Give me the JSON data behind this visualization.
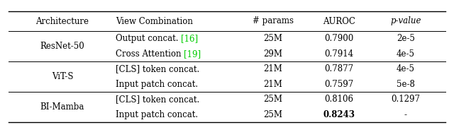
{
  "columns": [
    "Architecture",
    "View Combination",
    "# params",
    "AUROC",
    "p-value"
  ],
  "rows": [
    [
      "ResNet-50",
      "Output concat. [16]",
      "25M",
      "0.7900",
      "2e-5"
    ],
    [
      "",
      "Cross Attention [19]",
      "29M",
      "0.7914",
      "4e-5"
    ],
    [
      "ViT-S",
      "[CLS] token concat.",
      "21M",
      "0.7877",
      "4e-5"
    ],
    [
      "",
      "Input patch concat.",
      "21M",
      "0.7597",
      "5e-8"
    ],
    [
      "BI-Mamba",
      "[CLS] token concat.",
      "25M",
      "0.8106",
      "0.1297"
    ],
    [
      "",
      "Input patch concat.",
      "25M",
      "0.8243",
      "-"
    ]
  ],
  "bold_cells": [
    [
      5,
      3
    ]
  ],
  "green_parts": {
    "0": {
      "prefix": "Output concat. ",
      "ref": "[16]"
    },
    "1": {
      "prefix": "Cross Attention ",
      "ref": "[19]"
    }
  },
  "arch_groups": [
    {
      "name": "ResNet-50",
      "rows": [
        0,
        1
      ]
    },
    {
      "name": "ViT-S",
      "rows": [
        2,
        3
      ]
    },
    {
      "name": "BI-Mamba",
      "rows": [
        4,
        5
      ]
    }
  ],
  "sep_after_rows": [
    1,
    3
  ],
  "background_color": "#ffffff",
  "line_color": "#000000",
  "text_color": "#000000",
  "green_color": "#00cc00",
  "fontsize": 8.5,
  "font_family": "serif"
}
